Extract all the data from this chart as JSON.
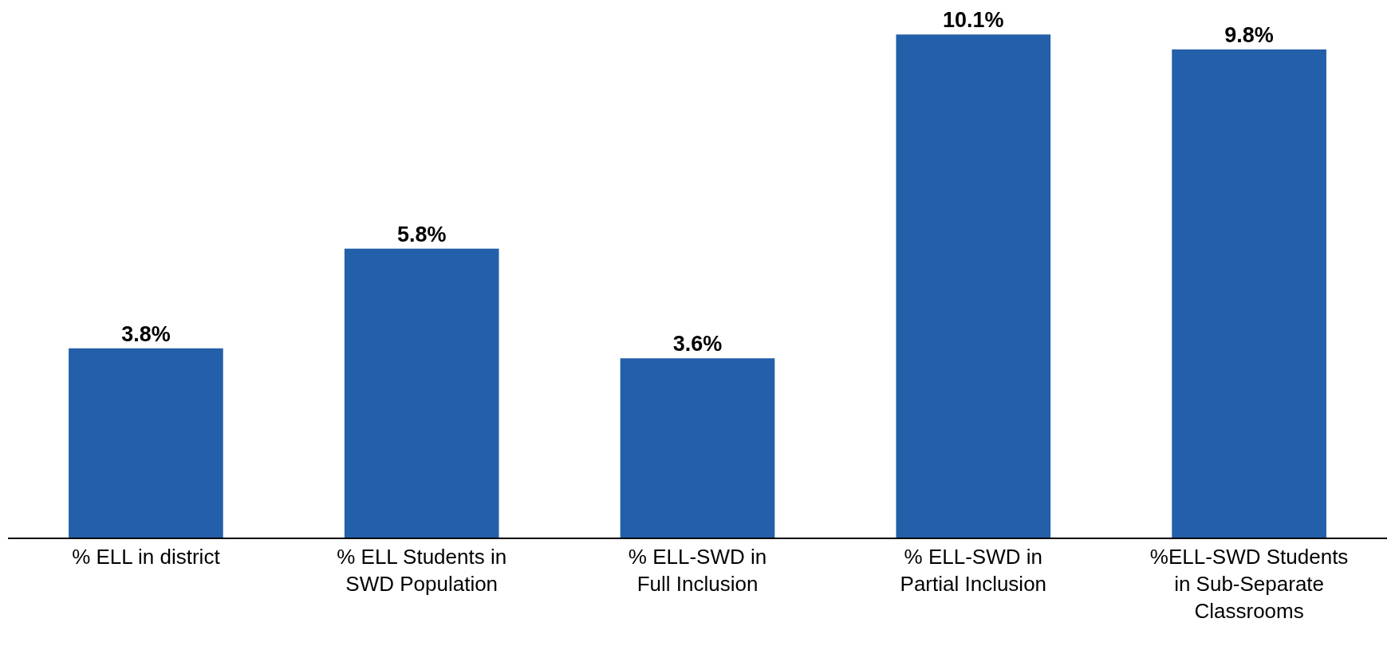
{
  "chart_data": {
    "type": "bar",
    "categories": [
      "% ELL in district",
      "% ELL Students in\nSWD Population",
      "% ELL-SWD in\nFull Inclusion",
      "% ELL-SWD in\nPartial Inclusion",
      "%ELL-SWD Students\nin Sub-Separate\nClassrooms"
    ],
    "values": [
      3.8,
      5.8,
      3.6,
      10.1,
      9.8
    ],
    "value_labels": [
      "3.8%",
      "5.8%",
      "3.6%",
      "10.1%",
      "9.8%"
    ],
    "color": "#245fa9",
    "tick_labels": "x",
    "legend": false
  }
}
